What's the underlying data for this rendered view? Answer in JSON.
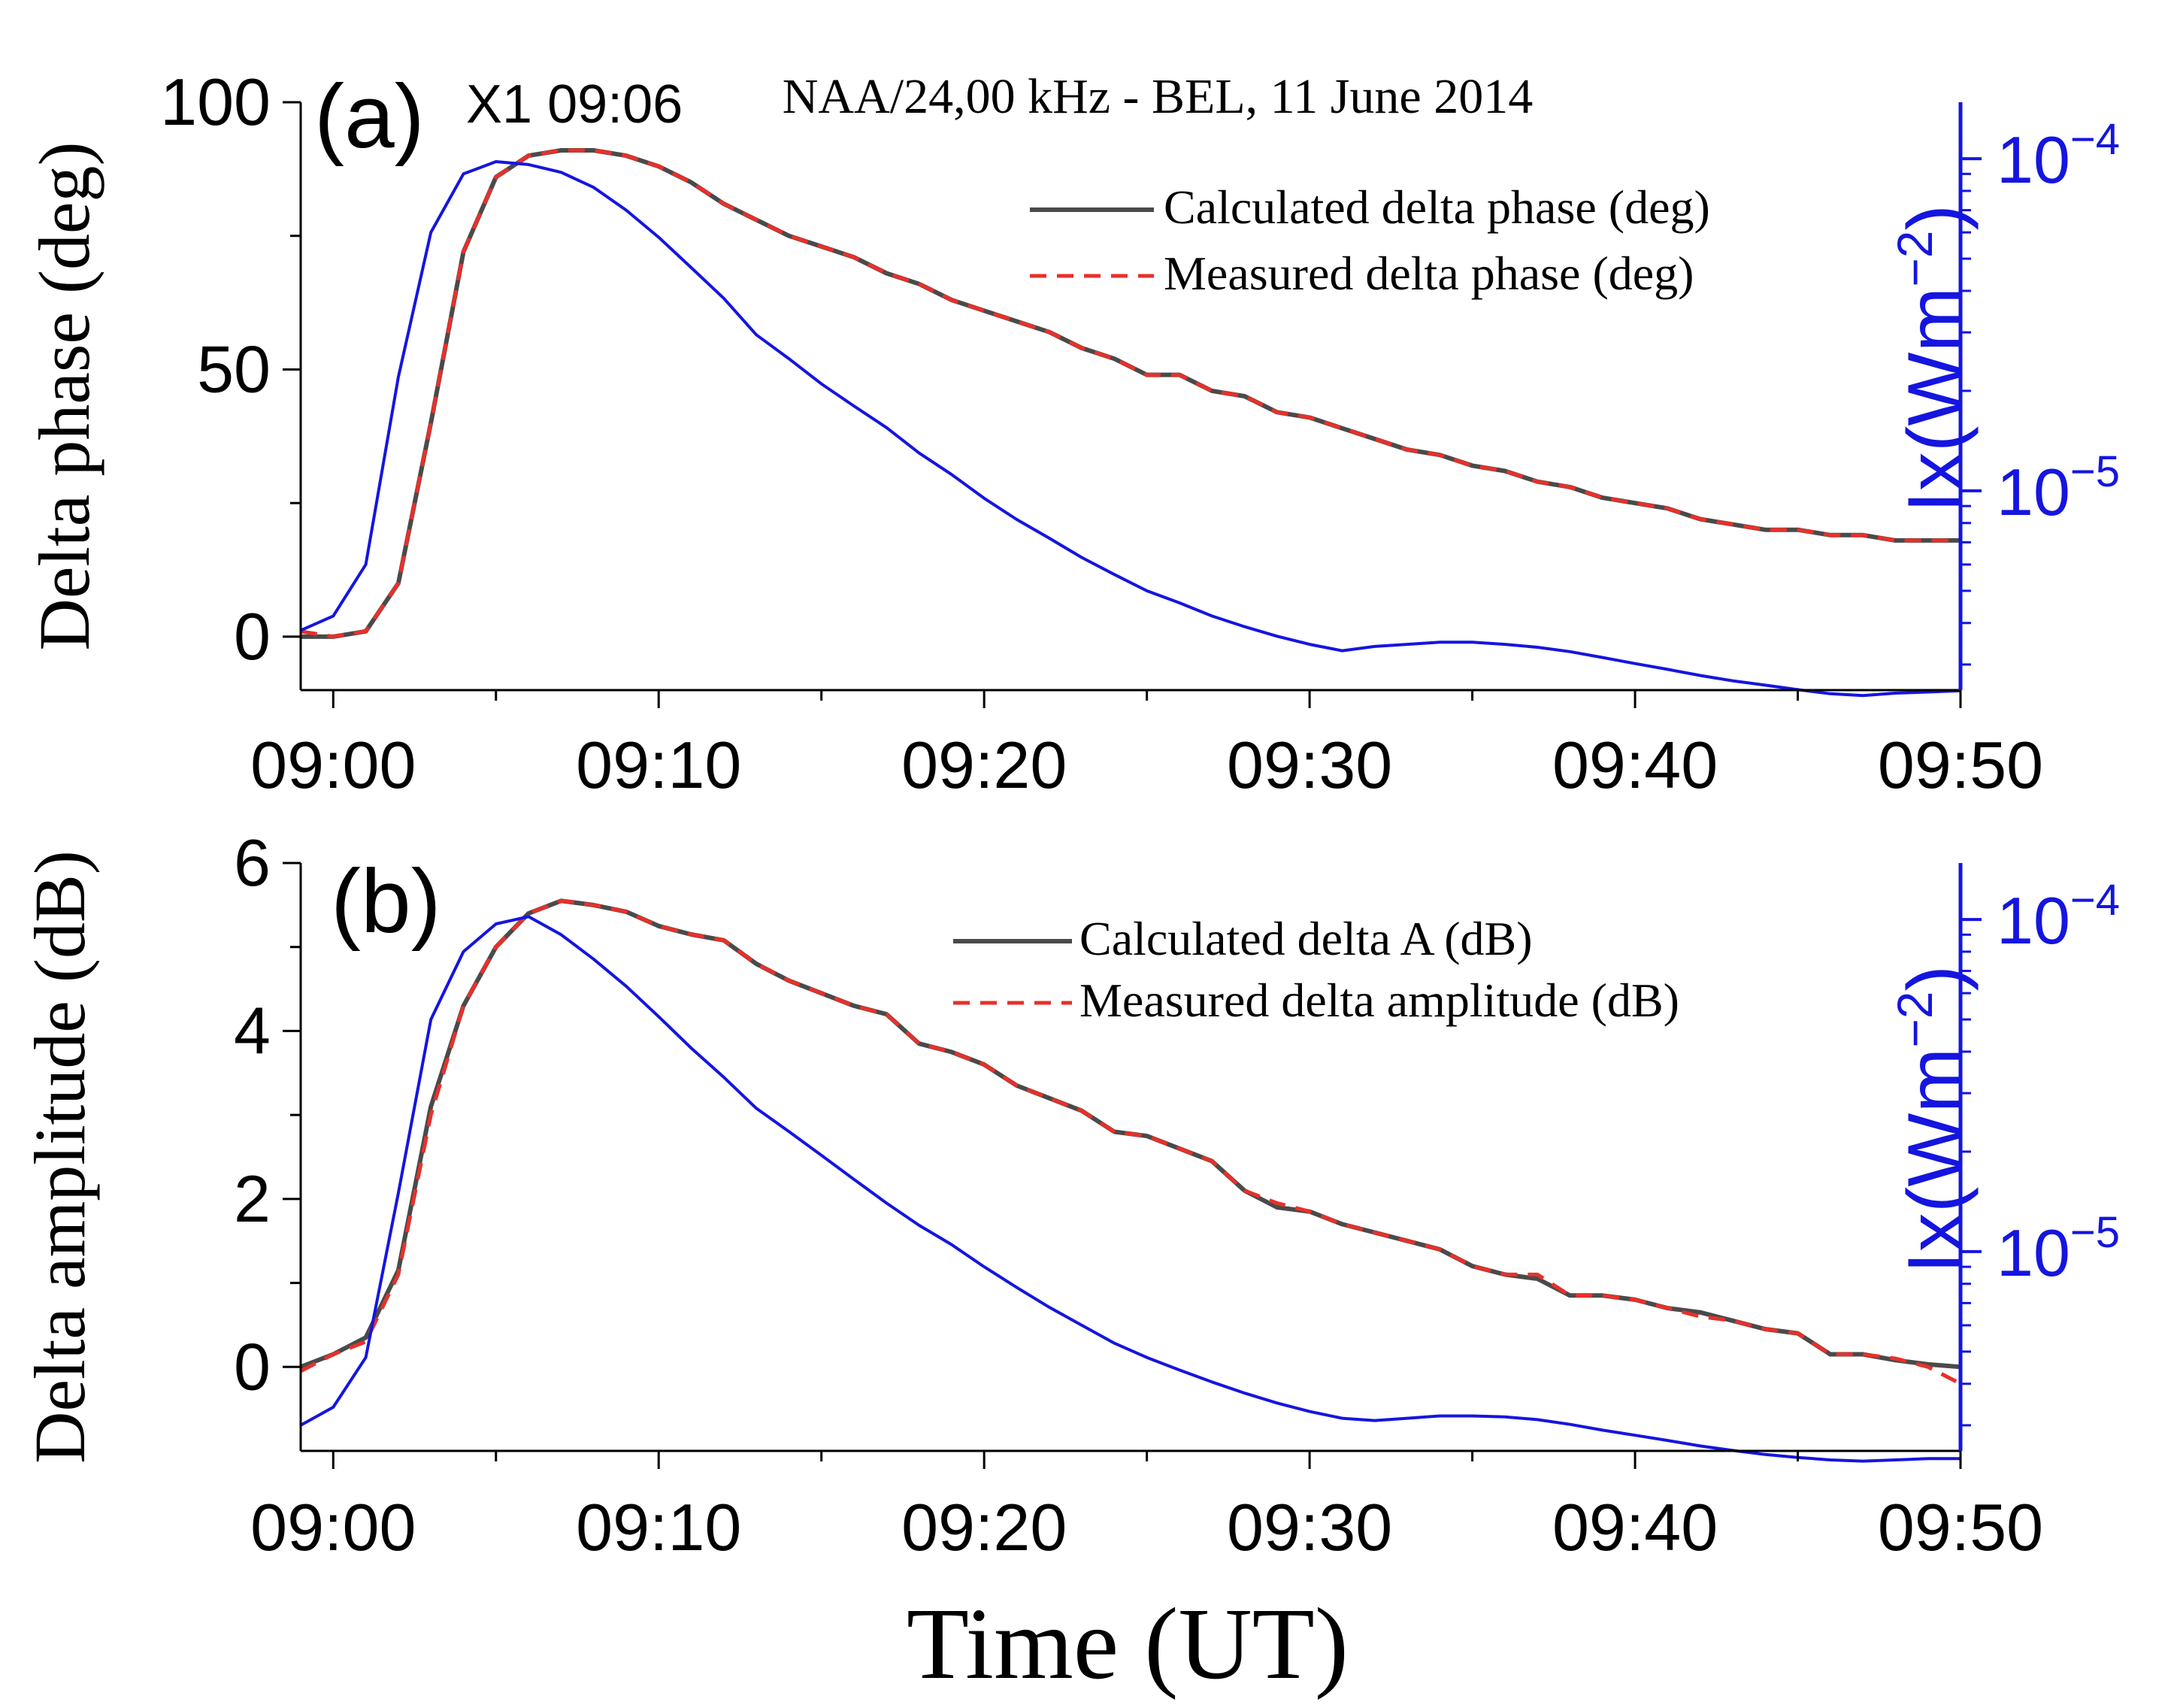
{
  "chart_data": [
    {
      "id": "a",
      "type": "line",
      "panel_label": "(a)",
      "flare_label": "X1 09:06",
      "title": "NAA/24,00 kHz - BEL, 11 June 2014",
      "ylabel": "Delta phase (deg)",
      "y2label": "Ix(Wm",
      "y2label_sup": "−2",
      "y2label_close": ")",
      "xlabel": "",
      "xlim": [
        -1,
        50
      ],
      "ylim": [
        -10,
        100
      ],
      "y2lim_log10": [
        -5.6,
        -3.83
      ],
      "x_ticks": [
        0,
        10,
        20,
        30,
        40,
        50
      ],
      "x_tick_labels": [
        "09:00",
        "09:10",
        "09:20",
        "09:30",
        "09:40",
        "09:50"
      ],
      "y_ticks": [
        0,
        50,
        100
      ],
      "y_tick_labels": [
        "0",
        "50",
        "100"
      ],
      "y2_major_ticks_log10": [
        -5,
        -4
      ],
      "y2_minor_ticks": [
        3e-06,
        4e-06,
        5e-06,
        6e-06,
        7e-06,
        8e-06,
        9e-06,
        2e-05,
        3e-05,
        4e-05,
        5e-05,
        6e-05,
        7e-05,
        8e-05,
        9e-05
      ],
      "y2_tick_base": "10",
      "y2_tick_exponents": [
        "−5",
        "−4"
      ],
      "legend_position": "upper-right",
      "series": [
        {
          "name": "Calculated delta phase (deg)",
          "color": "#4a4a4a",
          "dash": "solid",
          "x": [
            -1,
            0,
            1,
            2,
            3,
            4,
            5,
            6,
            7,
            8,
            9,
            10,
            11,
            12,
            13,
            14,
            15,
            16,
            17,
            18,
            19,
            20,
            21,
            22,
            23,
            24,
            25,
            26,
            27,
            28,
            29,
            30,
            31,
            32,
            33,
            34,
            35,
            36,
            37,
            38,
            39,
            40,
            41,
            42,
            43,
            44,
            45,
            46,
            47,
            48,
            49,
            50
          ],
          "y": [
            0,
            0,
            1,
            10,
            40,
            72,
            86,
            90,
            91,
            91,
            90,
            88,
            85,
            81,
            78,
            75,
            73,
            71,
            68,
            66,
            63,
            61,
            59,
            57,
            54,
            52,
            49,
            49,
            46,
            45,
            42,
            41,
            39,
            37,
            35,
            34,
            32,
            31,
            29,
            28,
            26,
            25,
            24,
            22,
            21,
            20,
            20,
            19,
            19,
            18,
            18,
            18
          ]
        },
        {
          "name": "Measured delta phase (deg)",
          "color": "#e8302a",
          "dash": "dashed",
          "x": [
            -1,
            0,
            1,
            2,
            3,
            4,
            5,
            6,
            7,
            8,
            9,
            10,
            11,
            12,
            13,
            14,
            15,
            16,
            17,
            18,
            19,
            20,
            21,
            22,
            23,
            24,
            25,
            26,
            27,
            28,
            29,
            30,
            31,
            32,
            33,
            34,
            35,
            36,
            37,
            38,
            39,
            40,
            41,
            42,
            43,
            44,
            45,
            46,
            47,
            48,
            49,
            50
          ],
          "y": [
            1,
            0,
            1,
            10,
            40,
            72,
            86,
            90,
            91,
            91,
            90,
            88,
            85,
            81,
            78,
            75,
            73,
            71,
            68,
            66,
            63,
            61,
            59,
            57,
            54,
            52,
            49,
            49,
            46,
            45,
            42,
            41,
            39,
            37,
            35,
            34,
            32,
            31,
            29,
            28,
            26,
            25,
            24,
            22,
            21,
            20,
            20,
            19,
            19,
            18,
            18,
            18
          ]
        },
        {
          "name": "Ix",
          "axis": "right-log",
          "color": "#1515e0",
          "dash": "solid",
          "x": [
            -1,
            0,
            1,
            2,
            3,
            4,
            5,
            6,
            7,
            8,
            9,
            10,
            11,
            12,
            13,
            14,
            15,
            16,
            17,
            18,
            19,
            20,
            21,
            22,
            23,
            24,
            25,
            26,
            27,
            28,
            29,
            30,
            31,
            32,
            33,
            34,
            35,
            36,
            37,
            38,
            39,
            40,
            41,
            42,
            43,
            44,
            45,
            46,
            47,
            48,
            49,
            50
          ],
          "y": [
            3.8e-06,
            4.2e-06,
            6e-06,
            2.2e-05,
            6e-05,
            9e-05,
            9.8e-05,
            9.6e-05,
            9.1e-05,
            8.2e-05,
            7e-05,
            5.8e-05,
            4.7e-05,
            3.8e-05,
            2.95e-05,
            2.5e-05,
            2.1e-05,
            1.8e-05,
            1.55e-05,
            1.3e-05,
            1.12e-05,
            9.5e-06,
            8.2e-06,
            7.2e-06,
            6.3e-06,
            5.6e-06,
            5e-06,
            4.6e-06,
            4.2e-06,
            3.9e-06,
            3.65e-06,
            3.45e-06,
            3.3e-06,
            3.4e-06,
            3.45e-06,
            3.5e-06,
            3.5e-06,
            3.45e-06,
            3.38e-06,
            3.28e-06,
            3.15e-06,
            3.02e-06,
            2.9e-06,
            2.78e-06,
            2.68e-06,
            2.6e-06,
            2.52e-06,
            2.45e-06,
            2.42e-06,
            2.46e-06,
            2.48e-06,
            2.5e-06
          ]
        }
      ]
    },
    {
      "id": "b",
      "type": "line",
      "panel_label": "(b)",
      "title": "",
      "ylabel": "Delta amplitude (dB)",
      "y2label": "Ix(Wm",
      "y2label_sup": "−2",
      "y2label_close": ")",
      "xlabel": "Time (UT)",
      "xlim": [
        -1,
        50
      ],
      "ylim": [
        -1,
        6
      ],
      "y2lim_log10": [
        -5.6,
        -3.83
      ],
      "x_ticks": [
        0,
        10,
        20,
        30,
        40,
        50
      ],
      "x_tick_labels": [
        "09:00",
        "09:10",
        "09:20",
        "09:30",
        "09:40",
        "09:50"
      ],
      "y_ticks": [
        0,
        2,
        4,
        6
      ],
      "y_tick_labels": [
        "0",
        "2",
        "4",
        "6"
      ],
      "y2_major_ticks_log10": [
        -5,
        -4
      ],
      "y2_minor_ticks": [
        3e-06,
        4e-06,
        5e-06,
        6e-06,
        7e-06,
        8e-06,
        9e-06,
        2e-05,
        3e-05,
        4e-05,
        5e-05,
        6e-05,
        7e-05,
        8e-05,
        9e-05
      ],
      "y2_tick_base": "10",
      "y2_tick_exponents": [
        "−5",
        "−4"
      ],
      "legend_position": "upper-right",
      "series": [
        {
          "name": "Calculated delta A (dB)",
          "color": "#4a4a4a",
          "dash": "solid",
          "x": [
            -1,
            0,
            1,
            2,
            3,
            4,
            5,
            6,
            7,
            8,
            9,
            10,
            11,
            12,
            13,
            14,
            15,
            16,
            17,
            18,
            19,
            20,
            21,
            22,
            23,
            24,
            25,
            26,
            27,
            28,
            29,
            30,
            31,
            32,
            33,
            34,
            35,
            36,
            37,
            38,
            39,
            40,
            41,
            42,
            43,
            44,
            45,
            46,
            47,
            48,
            49,
            50
          ],
          "y": [
            0,
            0.15,
            0.35,
            1.15,
            3.1,
            4.3,
            5.0,
            5.4,
            5.55,
            5.5,
            5.42,
            5.25,
            5.15,
            5.08,
            4.8,
            4.6,
            4.45,
            4.3,
            4.2,
            3.85,
            3.75,
            3.6,
            3.35,
            3.2,
            3.05,
            2.8,
            2.75,
            2.6,
            2.45,
            2.1,
            1.9,
            1.85,
            1.7,
            1.6,
            1.5,
            1.4,
            1.2,
            1.1,
            1.05,
            0.85,
            0.85,
            0.8,
            0.7,
            0.65,
            0.55,
            0.45,
            0.4,
            0.15,
            0.15,
            0.08,
            0.03,
            0.0
          ]
        },
        {
          "name": "Measured delta amplitude (dB)",
          "color": "#e8302a",
          "dash": "dashed",
          "x": [
            -1,
            0,
            1,
            2,
            3,
            4,
            5,
            6,
            7,
            8,
            9,
            10,
            11,
            12,
            13,
            14,
            15,
            16,
            17,
            18,
            19,
            20,
            21,
            22,
            23,
            24,
            25,
            26,
            27,
            28,
            29,
            30,
            31,
            32,
            33,
            34,
            35,
            36,
            37,
            38,
            39,
            40,
            41,
            42,
            43,
            44,
            45,
            46,
            47,
            48,
            49,
            50
          ],
          "y": [
            -0.05,
            0.15,
            0.3,
            1.1,
            3.0,
            4.3,
            5.0,
            5.4,
            5.55,
            5.5,
            5.42,
            5.25,
            5.15,
            5.08,
            4.8,
            4.6,
            4.45,
            4.3,
            4.2,
            3.85,
            3.75,
            3.6,
            3.35,
            3.2,
            3.05,
            2.8,
            2.75,
            2.6,
            2.45,
            2.1,
            1.95,
            1.85,
            1.7,
            1.6,
            1.5,
            1.4,
            1.2,
            1.1,
            1.1,
            0.85,
            0.85,
            0.8,
            0.7,
            0.6,
            0.55,
            0.45,
            0.4,
            0.15,
            0.15,
            0.1,
            0.0,
            -0.2
          ]
        },
        {
          "name": "Ix",
          "axis": "right-log",
          "color": "#1515e0",
          "dash": "solid",
          "x": [
            -1,
            0,
            1,
            2,
            3,
            4,
            5,
            6,
            7,
            8,
            9,
            10,
            11,
            12,
            13,
            14,
            15,
            16,
            17,
            18,
            19,
            20,
            21,
            22,
            23,
            24,
            25,
            26,
            27,
            28,
            29,
            30,
            31,
            32,
            33,
            34,
            35,
            36,
            37,
            38,
            39,
            40,
            41,
            42,
            43,
            44,
            45,
            46,
            47,
            48,
            49,
            50
          ],
          "y": [
            3e-06,
            3.4e-06,
            4.8e-06,
            1.5e-05,
            5e-05,
            8e-05,
            9.7e-05,
            0.000102,
            9e-05,
            7.6e-05,
            6.3e-05,
            5.1e-05,
            4.1e-05,
            3.35e-05,
            2.7e-05,
            2.3e-05,
            1.95e-05,
            1.65e-05,
            1.4e-05,
            1.2e-05,
            1.05e-05,
            9e-06,
            7.8e-06,
            6.8e-06,
            6e-06,
            5.3e-06,
            4.8e-06,
            4.4e-06,
            4.05e-06,
            3.75e-06,
            3.5e-06,
            3.3e-06,
            3.15e-06,
            3.1e-06,
            3.15e-06,
            3.2e-06,
            3.2e-06,
            3.18e-06,
            3.12e-06,
            3.02e-06,
            2.9e-06,
            2.8e-06,
            2.7e-06,
            2.6e-06,
            2.52e-06,
            2.45e-06,
            2.4e-06,
            2.36e-06,
            2.34e-06,
            2.36e-06,
            2.38e-06,
            2.38e-06
          ]
        }
      ]
    }
  ]
}
